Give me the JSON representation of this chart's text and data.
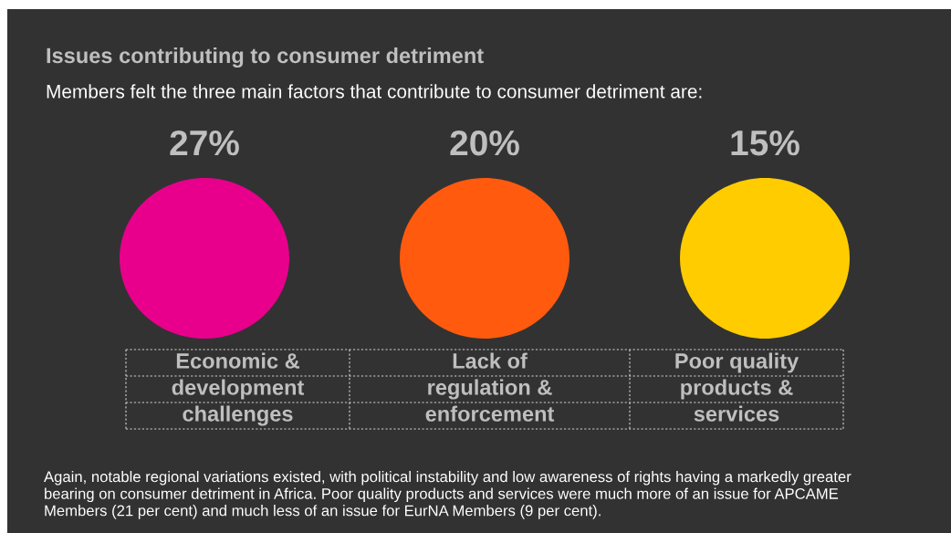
{
  "chart_data": {
    "type": "other",
    "title": "Issues contributing to consumer detriment",
    "subtitle": "Members felt the three main factors that contribute to consumer detriment are:",
    "categories": [
      "Economic &\ndevelopment\nchallenges",
      "Lack of\nregulation &\nenforcement",
      "Poor quality\nproducts &\nservices"
    ],
    "values": [
      27,
      20,
      15
    ],
    "value_labels": [
      "27%",
      "20%",
      "15%"
    ],
    "colors": [
      "#e8008c",
      "#ff5a0e",
      "#ffcc00"
    ],
    "annotations": [
      "Again, notable regional variations existed, with political instability and low awareness of rights having a markedly greater\nbearing on consumer detriment in Africa. Poor quality products and services were much more of an issue for APCAME\nMembers (21 per cent) and much less of an issue for EurNA Members (9 per cent)."
    ]
  }
}
